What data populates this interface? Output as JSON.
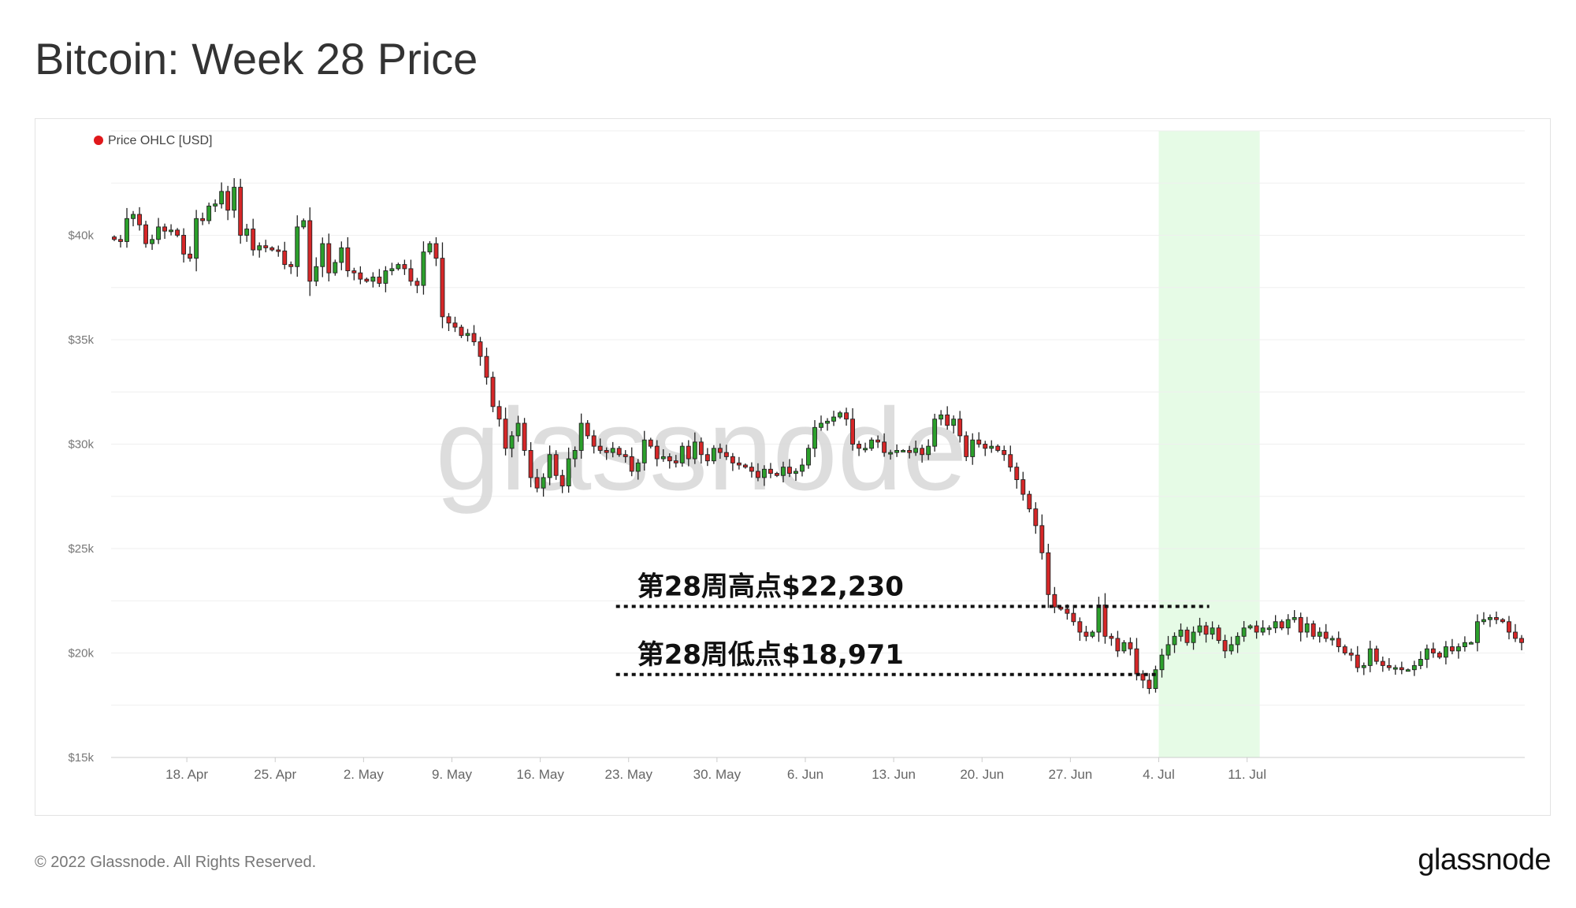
{
  "header": {
    "title": "Bitcoin: Week 28 Price"
  },
  "footer": {
    "copyright": "© 2022 Glassnode. All Rights Reserved.",
    "logo_text": "glassnode"
  },
  "watermark": "glassnode",
  "colors": {
    "up": "#2ca02c",
    "down": "#d62728",
    "highlight": "#e6fbe6",
    "legend_dot": "#e0181b"
  },
  "chart_data": {
    "type": "candlestick",
    "title": "Bitcoin: Week 28 Price",
    "legend": [
      {
        "name": "Price OHLC [USD]",
        "color": "#e0181b"
      }
    ],
    "legend_position": "top-left",
    "grid": true,
    "y_axis": {
      "min": 15000,
      "max": 45000,
      "ticks": [
        15000,
        20000,
        25000,
        30000,
        35000,
        40000
      ],
      "tick_labels": [
        "$15k",
        "$20k",
        "$25k",
        "$30k",
        "$35k",
        "$40k"
      ]
    },
    "x_axis": {
      "ticks": [
        "2022-04-18",
        "2022-04-25",
        "2022-05-02",
        "2022-05-09",
        "2022-05-16",
        "2022-05-23",
        "2022-05-30",
        "2022-06-06",
        "2022-06-13",
        "2022-06-20",
        "2022-06-27",
        "2022-07-04",
        "2022-07-11"
      ],
      "tick_labels": [
        "18. Apr",
        "25. Apr",
        "2. May",
        "9. May",
        "16. May",
        "23. May",
        "30. May",
        "6. Jun",
        "13. Jun",
        "20. Jun",
        "27. Jun",
        "4. Jul",
        "11. Jul"
      ]
    },
    "highlight_range": [
      "2022-07-04",
      "2022-07-12"
    ],
    "annotations": [
      {
        "text": "第28周高点$22,230",
        "value": 22230,
        "from": "2022-05-22",
        "to": "2022-07-08"
      },
      {
        "text": "第28周低点$18,971",
        "value": 18971,
        "from": "2022-05-22",
        "to": "2022-07-04"
      }
    ],
    "start_date": "2022-04-12",
    "candle_interval_hours": 12,
    "closes": [
      39800,
      39700,
      40800,
      41000,
      40500,
      39600,
      39800,
      40400,
      40200,
      40250,
      40000,
      39100,
      38900,
      40800,
      40700,
      41400,
      41500,
      42100,
      41200,
      42300,
      40000,
      40300,
      39300,
      39500,
      39400,
      39300,
      39250,
      38600,
      38500,
      40400,
      40700,
      37800,
      38500,
      39600,
      38200,
      38700,
      39400,
      38300,
      38200,
      37900,
      37800,
      38000,
      37700,
      38300,
      38400,
      38600,
      38400,
      37800,
      37600,
      39200,
      39600,
      38900,
      36100,
      35800,
      35600,
      35200,
      35300,
      34900,
      34200,
      33200,
      31800,
      31200,
      29800,
      30400,
      31000,
      29700,
      28400,
      27900,
      28400,
      29500,
      28500,
      28000,
      29300,
      29700,
      31000,
      30400,
      29900,
      29700,
      29600,
      29800,
      29500,
      29400,
      28700,
      29100,
      30200,
      29900,
      29300,
      29400,
      29200,
      29100,
      29900,
      29300,
      30100,
      29500,
      29200,
      29800,
      29600,
      29400,
      29100,
      29000,
      28900,
      28700,
      28400,
      28800,
      28600,
      28500,
      28900,
      28600,
      28700,
      29000,
      29800,
      30800,
      31000,
      31100,
      31300,
      31500,
      31200,
      30000,
      29800,
      29800,
      30200,
      30100,
      29600,
      29600,
      29700,
      29700,
      29600,
      29800,
      29500,
      29900,
      31200,
      31400,
      30900,
      31200,
      30400,
      29400,
      30200,
      30000,
      29800,
      29900,
      29700,
      29500,
      28900,
      28300,
      27600,
      26900,
      26100,
      24800,
      22800,
      22200,
      22100,
      21900,
      21500,
      21000,
      20800,
      21000,
      22300,
      20800,
      20700,
      20100,
      20500,
      20200,
      19000,
      18700,
      18300,
      19200,
      19900,
      20400,
      20800,
      21100,
      20500,
      21000,
      21300,
      20900,
      21200,
      20600,
      20100,
      20400,
      20800,
      21200,
      21300,
      21000,
      21200,
      21200,
      21500,
      21200,
      21600,
      21700,
      21000,
      21400,
      20800,
      21000,
      20700,
      20700,
      20300,
      20000,
      19900,
      19300,
      19400,
      20200,
      19600,
      19400,
      19300,
      19300,
      19200,
      19200,
      19400,
      19700,
      20200,
      20000,
      19800,
      20300,
      20100,
      20300,
      20500,
      20500,
      21500,
      21600,
      21700,
      21600,
      21500,
      21000,
      20700,
      20500
    ]
  }
}
